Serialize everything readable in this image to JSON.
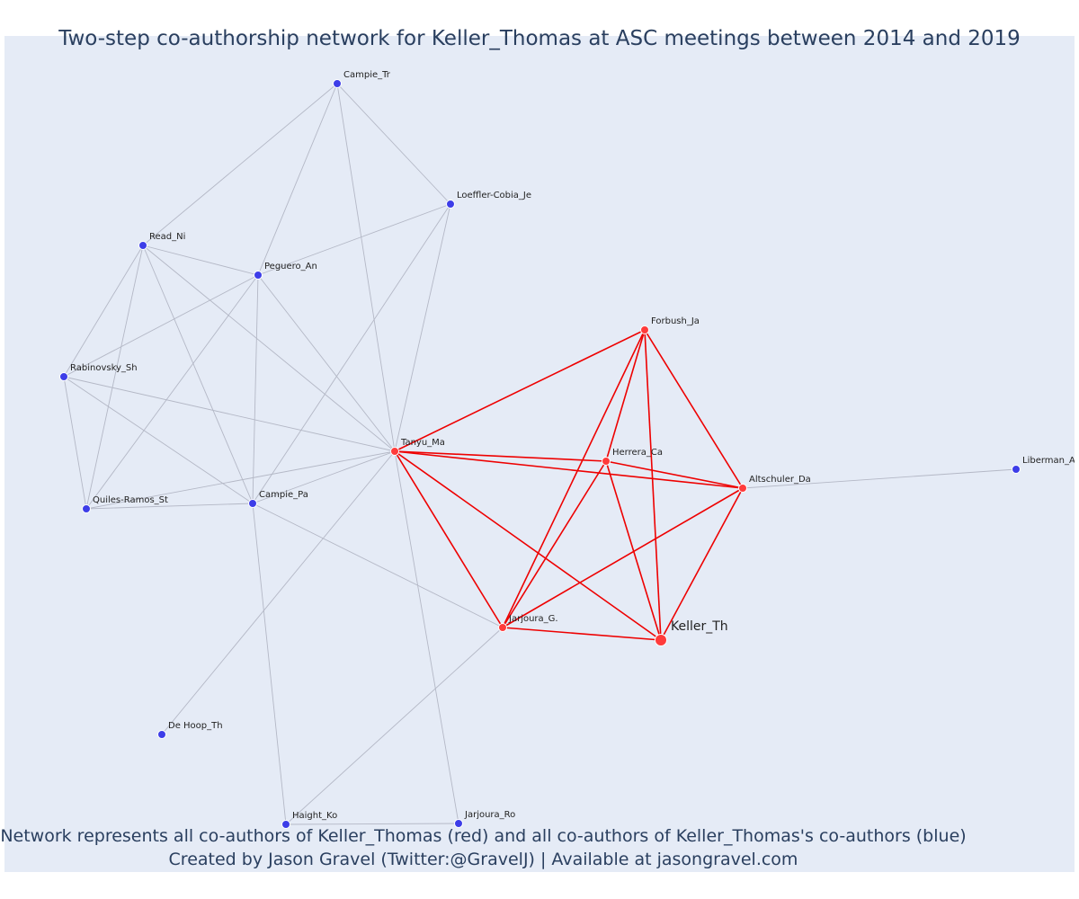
{
  "title": "Two-step co-authorship network for Keller_Thomas at ASC meetings between 2014 and 2019",
  "footer": {
    "line1": "Network represents all co-authors of Keller_Thomas (red) and all co-authors of Keller_Thomas's co-authors (blue)",
    "line2": "Created by Jason Gravel (Twitter:@GravelJ) | Available at jasongravel.com"
  },
  "colors": {
    "background": "#e5ebf6",
    "red_node": "#ff3b3b",
    "blue_node": "#3d3de8",
    "red_edge": "#ee0000",
    "gray_edge": "#b4b8c6",
    "text": "#2a3f5f"
  },
  "nodes": [
    {
      "id": "Campie_Tr",
      "label": "Campie_Tr",
      "group": "blue"
    },
    {
      "id": "Loeffler-Cobia_Je",
      "label": "Loeffler-Cobia_Je",
      "group": "blue"
    },
    {
      "id": "Read_Ni",
      "label": "Read_Ni",
      "group": "blue"
    },
    {
      "id": "Peguero_An",
      "label": "Peguero_An",
      "group": "blue"
    },
    {
      "id": "Rabinovsky_Sh",
      "label": "Rabinovsky_Sh",
      "group": "blue"
    },
    {
      "id": "Quiles-Ramos_St",
      "label": "Quiles-Ramos_St",
      "group": "blue"
    },
    {
      "id": "Campie_Pa",
      "label": "Campie_Pa",
      "group": "blue"
    },
    {
      "id": "Tanyu_Ma",
      "label": "Tanyu_Ma",
      "group": "red"
    },
    {
      "id": "Forbush_Ja",
      "label": "Forbush_Ja",
      "group": "red"
    },
    {
      "id": "Herrera_Ca",
      "label": "Herrera_Ca",
      "group": "red"
    },
    {
      "id": "Altschuler_Da",
      "label": "Altschuler_Da",
      "group": "red"
    },
    {
      "id": "Liberman_Ak",
      "label": "Liberman_Ak",
      "group": "blue"
    },
    {
      "id": "Jarjoura_G.",
      "label": "Jarjoura_G.",
      "group": "red"
    },
    {
      "id": "Keller_Th",
      "label": "Keller_Th",
      "group": "focal"
    },
    {
      "id": "De Hoop_Th",
      "label": "De Hoop_Th",
      "group": "blue"
    },
    {
      "id": "Haight_Ko",
      "label": "Haight_Ko",
      "group": "blue"
    },
    {
      "id": "Jarjoura_Ro",
      "label": "Jarjoura_Ro",
      "group": "blue"
    }
  ],
  "edges": [
    [
      "Campie_Tr",
      "Read_Ni"
    ],
    [
      "Campie_Tr",
      "Peguero_An"
    ],
    [
      "Campie_Tr",
      "Loeffler-Cobia_Je"
    ],
    [
      "Campie_Tr",
      "Tanyu_Ma"
    ],
    [
      "Loeffler-Cobia_Je",
      "Peguero_An"
    ],
    [
      "Loeffler-Cobia_Je",
      "Tanyu_Ma"
    ],
    [
      "Loeffler-Cobia_Je",
      "Campie_Pa"
    ],
    [
      "Read_Ni",
      "Peguero_An"
    ],
    [
      "Read_Ni",
      "Rabinovsky_Sh"
    ],
    [
      "Read_Ni",
      "Quiles-Ramos_St"
    ],
    [
      "Read_Ni",
      "Campie_Pa"
    ],
    [
      "Read_Ni",
      "Tanyu_Ma"
    ],
    [
      "Peguero_An",
      "Rabinovsky_Sh"
    ],
    [
      "Peguero_An",
      "Quiles-Ramos_St"
    ],
    [
      "Peguero_An",
      "Campie_Pa"
    ],
    [
      "Peguero_An",
      "Tanyu_Ma"
    ],
    [
      "Rabinovsky_Sh",
      "Quiles-Ramos_St"
    ],
    [
      "Rabinovsky_Sh",
      "Campie_Pa"
    ],
    [
      "Rabinovsky_Sh",
      "Tanyu_Ma"
    ],
    [
      "Quiles-Ramos_St",
      "Campie_Pa"
    ],
    [
      "Quiles-Ramos_St",
      "Tanyu_Ma"
    ],
    [
      "Campie_Pa",
      "Tanyu_Ma"
    ],
    [
      "Campie_Pa",
      "Jarjoura_G."
    ],
    [
      "Campie_Pa",
      "Haight_Ko"
    ],
    [
      "Tanyu_Ma",
      "De Hoop_Th"
    ],
    [
      "Tanyu_Ma",
      "Jarjoura_Ro"
    ],
    [
      "Haight_Ko",
      "Jarjoura_Ro"
    ],
    [
      "Haight_Ko",
      "Jarjoura_G."
    ],
    [
      "Altschuler_Da",
      "Liberman_Ak"
    ],
    [
      "Tanyu_Ma",
      "Forbush_Ja"
    ],
    [
      "Tanyu_Ma",
      "Herrera_Ca"
    ],
    [
      "Tanyu_Ma",
      "Altschuler_Da"
    ],
    [
      "Tanyu_Ma",
      "Jarjoura_G."
    ],
    [
      "Tanyu_Ma",
      "Keller_Th"
    ],
    [
      "Forbush_Ja",
      "Herrera_Ca"
    ],
    [
      "Forbush_Ja",
      "Altschuler_Da"
    ],
    [
      "Forbush_Ja",
      "Jarjoura_G."
    ],
    [
      "Forbush_Ja",
      "Keller_Th"
    ],
    [
      "Herrera_Ca",
      "Altschuler_Da"
    ],
    [
      "Herrera_Ca",
      "Jarjoura_G."
    ],
    [
      "Herrera_Ca",
      "Keller_Th"
    ],
    [
      "Altschuler_Da",
      "Jarjoura_G."
    ],
    [
      "Altschuler_Da",
      "Keller_Th"
    ],
    [
      "Jarjoura_G.",
      "Keller_Th"
    ]
  ]
}
